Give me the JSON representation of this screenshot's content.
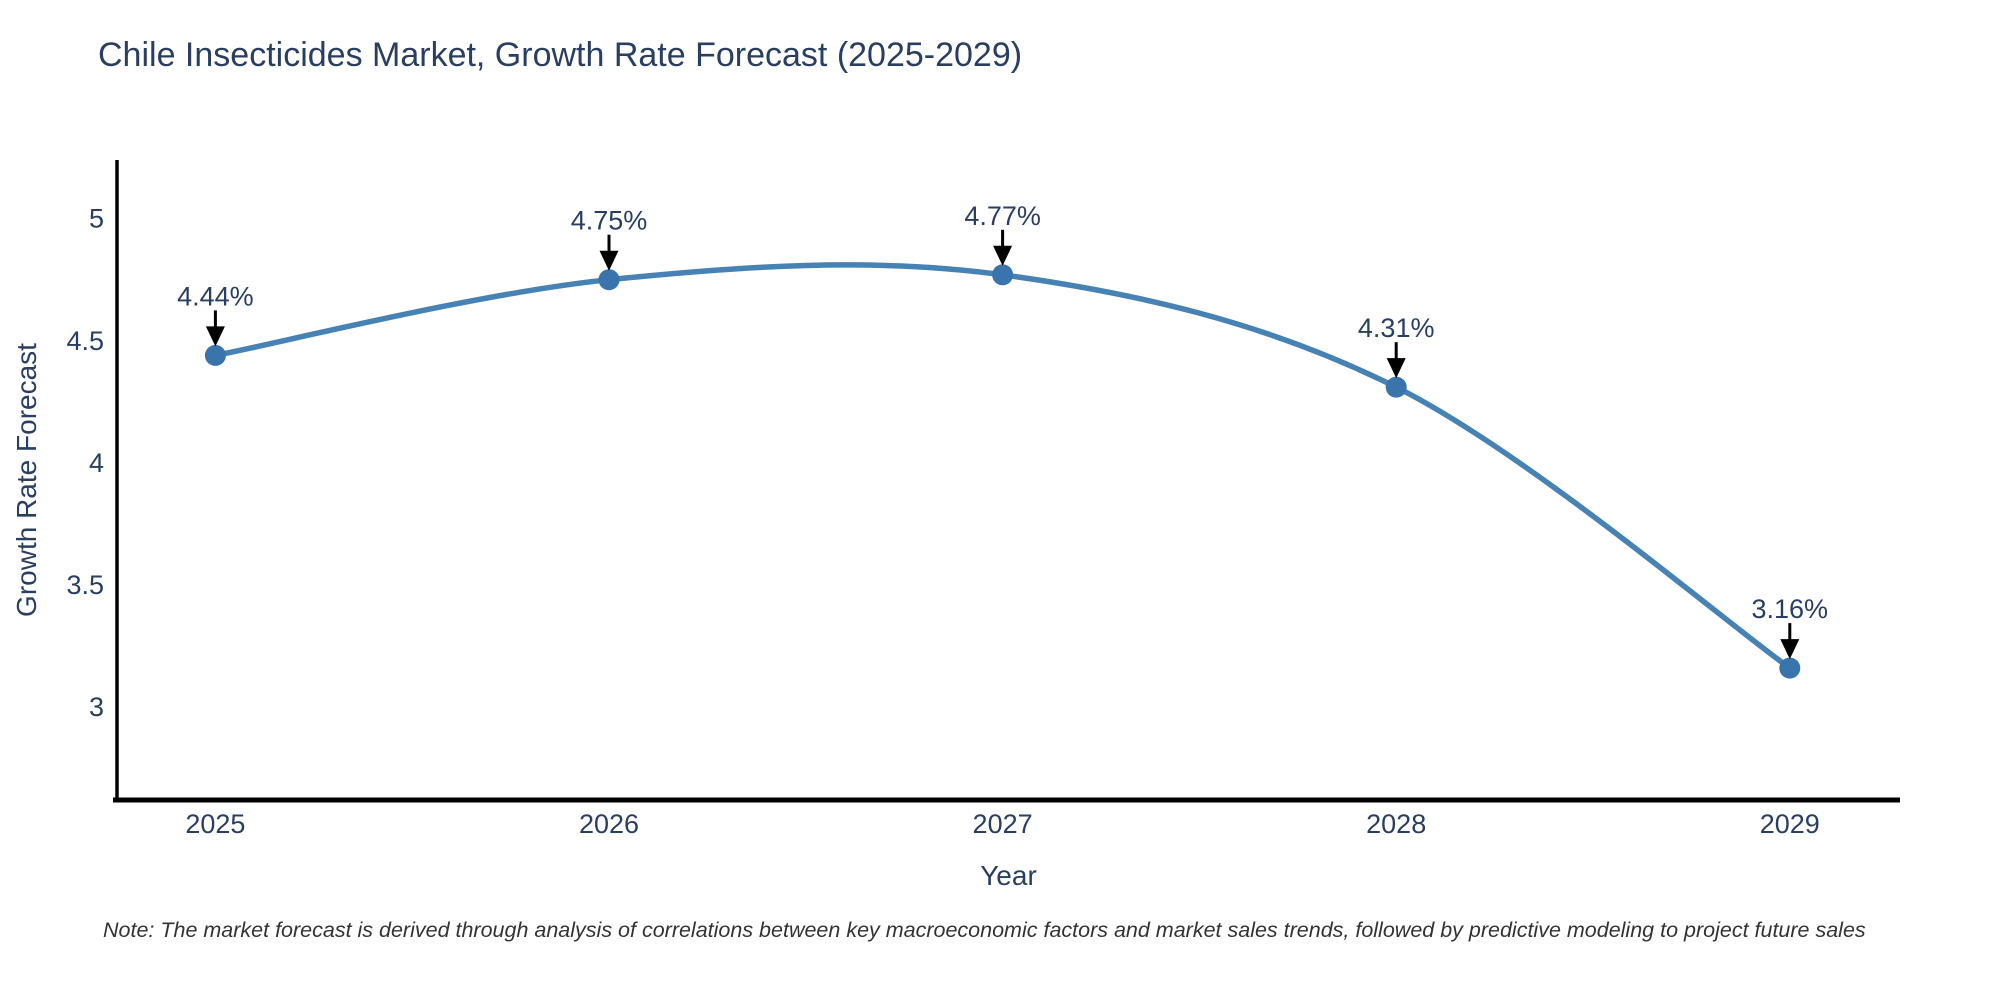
{
  "chart": {
    "title": "Chile Insecticides Market, Growth Rate Forecast (2025-2029)",
    "note": "Note: The market forecast is derived through analysis of correlations between key macroeconomic factors and market sales trends, followed by predictive modeling to project future sales"
  },
  "chart_data": {
    "type": "line",
    "title": "Chile Insecticides Market, Growth Rate Forecast (2025-2029)",
    "categories": [
      "2025",
      "2026",
      "2027",
      "2028",
      "2029"
    ],
    "values": [
      4.44,
      4.75,
      4.77,
      4.31,
      3.16
    ],
    "point_labels": [
      "4.44%",
      "4.75%",
      "4.77%",
      "4.31%",
      "3.16%"
    ],
    "series_name": "Growth Rate Forecast",
    "xlabel": "Year",
    "ylabel": "Growth Rate Forecast",
    "ytick_labels": [
      "3",
      "3.5",
      "4",
      "4.5",
      "5"
    ],
    "ytick_values": [
      3,
      3.5,
      4,
      4.5,
      5
    ],
    "ylim": [
      2.62,
      5.24
    ],
    "x_index_range": [
      -0.25,
      4.28
    ],
    "line_shape": "spline",
    "grid": false,
    "legend": "none",
    "annotations_arrow": "down-black",
    "colors": {
      "line": "#4682b4",
      "marker": "#3a74ad",
      "axis": "#000000",
      "arrow": "#000000",
      "title_text": "#2a3f5f",
      "tick_text": "#2a3f5f",
      "annotation_text": "#2a3f5f",
      "note_text": "#333333",
      "background": "#ffffff"
    }
  }
}
